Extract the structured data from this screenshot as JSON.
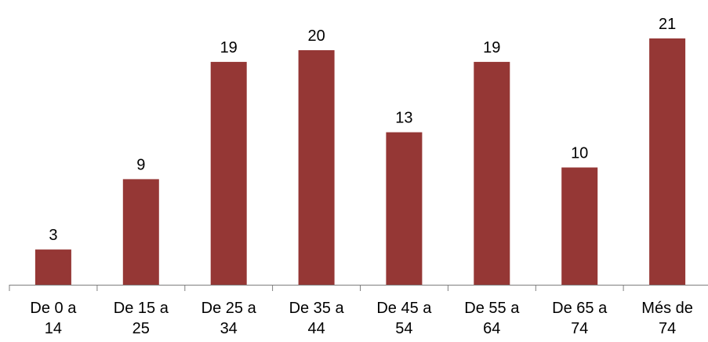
{
  "chart_data": {
    "type": "bar",
    "categories": [
      [
        "De 0 a",
        "14"
      ],
      [
        "De 15 a",
        "25"
      ],
      [
        "De 25 a",
        "34"
      ],
      [
        "De 35 a",
        "44"
      ],
      [
        "De 45 a",
        "54"
      ],
      [
        "De 55 a",
        "64"
      ],
      [
        "De 65 a",
        "74"
      ],
      [
        "Més de",
        "74"
      ]
    ],
    "values": [
      3,
      9,
      19,
      20,
      13,
      19,
      10,
      21
    ],
    "data_labels": [
      "3",
      "9",
      "19",
      "20",
      "13",
      "19",
      "10",
      "21"
    ],
    "ylim": [
      0,
      21
    ],
    "grid": false,
    "legend": "none",
    "bar_color": "#953735",
    "axis_color": "#7f7f7f"
  }
}
